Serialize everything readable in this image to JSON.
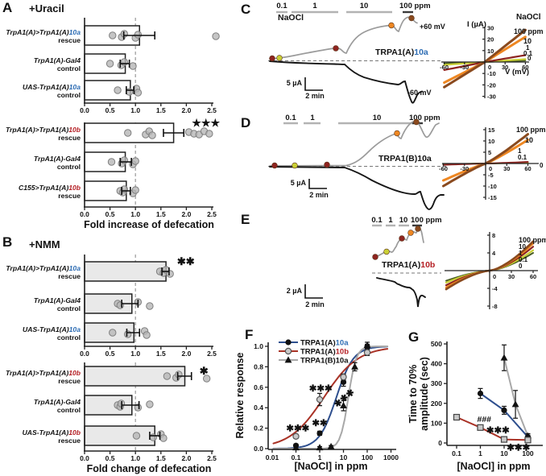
{
  "figure": {
    "panel_letters": [
      "A",
      "B",
      "C",
      "D",
      "E",
      "F",
      "G"
    ],
    "titles": {
      "uracil": "+Uracil",
      "nmm": "+NMM"
    }
  },
  "colors": {
    "blue": "#2e6db4",
    "red": "#b52025",
    "bar_open": "#ffffff",
    "bar_filled": "#e9e9e9",
    "dot_fill": "#b7b7b7",
    "dot_stroke": "#7f7f7f",
    "trace_gray": "#9b9b9b",
    "trace_black": "#161616",
    "c100": "#8a4a1e",
    "c10": "#ee8722",
    "c1": "#8e2420",
    "c01": "#c9cf35",
    "c0": "#4a5d23",
    "series_blue": "#2e4f8e",
    "series_red": "#a93226",
    "series_gray": "#a8a8a8"
  },
  "chart_data": [
    {
      "id": "a_top",
      "type": "bar",
      "orientation": "horizontal",
      "bar_style": "open",
      "xlim": [
        0,
        2.5
      ],
      "xticks": [
        "0.0",
        "0.5",
        "1.0",
        "1.5",
        "2.0",
        "2.5"
      ],
      "refline": 1.0,
      "xlabel": null,
      "rows": [
        {
          "label_pre": "TrpA1(A)>TrpA1(A)",
          "label_var": "10a",
          "var_color": "blue",
          "label_line2": "rescue",
          "value": 1.08,
          "err": [
            0.77,
            1.38
          ],
          "points": [
            0.55,
            0.73,
            0.78,
            1.0,
            1.05,
            2.58
          ],
          "sig": ""
        },
        {
          "label_pre": "TrpA1(A)-Gal4",
          "label_var": "",
          "var_color": null,
          "label_line2": "control",
          "value": 0.8,
          "err": [
            0.7,
            0.88
          ],
          "points": [
            0.5,
            0.72,
            0.78,
            0.95
          ],
          "sig": ""
        },
        {
          "label_pre": "UAS-TrpA1(A)",
          "label_var": "10a",
          "var_color": "blue",
          "label_line2": "control",
          "value": 0.9,
          "err": [
            0.82,
            0.97
          ],
          "points": [
            0.65,
            0.88,
            1.02,
            1.05
          ],
          "sig": ""
        }
      ]
    },
    {
      "id": "a_bottom",
      "type": "bar",
      "orientation": "horizontal",
      "bar_style": "open",
      "xlim": [
        0,
        2.5
      ],
      "xticks": [
        "0.0",
        "0.5",
        "1.0",
        "1.5",
        "2.0",
        "2.5"
      ],
      "refline": 1.0,
      "xlabel": "Fold increase of defecation",
      "rows": [
        {
          "label_pre": "TrpA1(A)>TrpA1(A)",
          "label_var": "10b",
          "var_color": "red",
          "label_line2": "rescue",
          "value": 1.75,
          "err": [
            1.55,
            1.95
          ],
          "points": [
            0.85,
            1.2,
            1.27,
            1.33,
            2.05,
            2.15,
            2.25,
            2.35,
            2.45
          ],
          "sig": "★★★"
        },
        {
          "label_pre": "TrpA1(A)-Gal4",
          "label_var": "",
          "var_color": null,
          "label_line2": "control",
          "value": 0.8,
          "err": [
            0.7,
            0.92
          ],
          "points": [
            0.53,
            0.73,
            0.78,
            0.95,
            1.0
          ],
          "sig": ""
        },
        {
          "label_pre": "C155>TrpA1(A)",
          "label_var": "10b",
          "var_color": "red",
          "label_line2": "rescue",
          "value": 0.82,
          "err": [
            0.73,
            0.9
          ],
          "points": [
            0.7,
            0.75,
            0.78,
            0.95,
            1.0
          ],
          "sig": ""
        }
      ]
    },
    {
      "id": "b_top",
      "type": "bar",
      "orientation": "horizontal",
      "bar_style": "filled",
      "xlim": [
        0,
        2.5
      ],
      "xticks": [
        "0.0",
        "0.5",
        "1.0",
        "1.5",
        "2.0",
        "2.5"
      ],
      "refline": 1.0,
      "xlabel": null,
      "rows": [
        {
          "label_pre": "TrpA1(A)>TrpA1(A)",
          "label_var": "10a",
          "var_color": "blue",
          "label_line2": "rescue",
          "value": 1.6,
          "err": [
            1.52,
            1.66
          ],
          "points": [
            1.48,
            1.55,
            1.6,
            1.68
          ],
          "sig": "✱✱"
        },
        {
          "label_pre": "TrpA1(A)-Gal4",
          "label_var": "",
          "var_color": null,
          "label_line2": "control",
          "value": 0.93,
          "err": [
            0.73,
            1.05
          ],
          "points": [
            0.65,
            0.7,
            1.05,
            1.28
          ],
          "sig": ""
        },
        {
          "label_pre": "UAS-TrpA1(A)",
          "label_var": "10a",
          "var_color": "blue",
          "label_line2": "control",
          "value": 0.97,
          "err": [
            0.83,
            1.08
          ],
          "points": [
            0.55,
            0.85,
            1.18,
            1.22
          ],
          "sig": ""
        }
      ]
    },
    {
      "id": "b_bottom",
      "type": "bar",
      "orientation": "horizontal",
      "bar_style": "filled",
      "xlim": [
        0,
        2.5
      ],
      "xticks": [
        "0.0",
        "0.5",
        "1.0",
        "1.5",
        "2.0",
        "2.5"
      ],
      "refline": 1.0,
      "xlabel": "Fold change of defecation",
      "rows": [
        {
          "label_pre": "TrpA1(A)>TrpA1(A)",
          "label_var": "10b",
          "var_color": "red",
          "label_line2": "rescue",
          "value": 1.97,
          "err": [
            1.83,
            2.1
          ],
          "points": [
            1.62,
            1.8,
            1.85,
            2.4
          ],
          "sig": "✱"
        },
        {
          "label_pre": "TrpA1(A)-Gal4",
          "label_var": "",
          "var_color": null,
          "label_line2": "control",
          "value": 0.93,
          "err": [
            0.73,
            1.07
          ],
          "points": [
            0.65,
            0.7,
            0.72,
            1.05,
            1.28
          ],
          "sig": ""
        },
        {
          "label_pre": "UAS-TrpA1(A)",
          "label_var": "10b",
          "var_color": "red",
          "label_line2": "rescue",
          "value": 1.38,
          "err": [
            1.28,
            1.48
          ],
          "points": [
            1.02,
            1.35,
            1.5,
            1.55
          ],
          "sig": ""
        }
      ]
    },
    {
      "id": "c_trace",
      "type": "trace",
      "reagent": "NaOCl",
      "conc_labels": [
        "0.1",
        "1",
        "10",
        "100 ppm"
      ],
      "cell_pre": "TRPA1(A)",
      "cell_var": "10a",
      "var_color": "blue",
      "v_plus": "+60 mV",
      "v_minus": "-60 mV",
      "scale_i": "5 µA",
      "scale_t": "2 min",
      "iv": {
        "ylabel": "I (µA)",
        "xlabel": "V (mV)",
        "legend_title": "NaOCl",
        "ylim": 30,
        "yticks": [
          30,
          20,
          10,
          -10,
          -20,
          -30
        ],
        "xticks": [
          -60,
          -30,
          0,
          30,
          60
        ],
        "series": [
          {
            "label": "100 ppm",
            "color": "c100",
            "i_neg": -22,
            "i_pos": 28
          },
          {
            "label": "10",
            "color": "c10",
            "i_neg": -18,
            "i_pos": 22
          },
          {
            "label": "1",
            "color": "c1",
            "i_neg": -7,
            "i_pos": 6
          },
          {
            "label": "0.1",
            "color": "c01",
            "i_neg": -2.5,
            "i_pos": 2.5
          },
          {
            "label": "0",
            "color": "c0",
            "i_neg": -1.2,
            "i_pos": 1.2
          }
        ]
      }
    },
    {
      "id": "d_trace",
      "type": "trace",
      "reagent": null,
      "conc_labels": [
        "0.1",
        "1",
        "10",
        "100 ppm"
      ],
      "cell_pre": "TRPA1(B)",
      "cell_var": "10a",
      "var_color": null,
      "v_plus": null,
      "v_minus": null,
      "scale_i": "5 µA",
      "scale_t": "2 min",
      "iv": {
        "ylabel": null,
        "xlabel": null,
        "legend_title": null,
        "ylim": 15,
        "yticks": [
          15,
          10,
          5,
          -5,
          -10,
          -15
        ],
        "xticks": [
          -60,
          -30,
          0,
          30,
          60
        ],
        "series": [
          {
            "label": "100 ppm",
            "color": "c100",
            "i_neg": -10,
            "i_pos": 13
          },
          {
            "label": "10",
            "color": "c10",
            "i_neg": -7.5,
            "i_pos": 10.5
          },
          {
            "label": "1",
            "color": "c1",
            "i_neg": -0.6,
            "i_pos": 0.7
          },
          {
            "label": "0.1",
            "color": "c01",
            "i_neg": -0.4,
            "i_pos": 0.4
          },
          {
            "label": "0",
            "color": "c0",
            "i_neg": -0.3,
            "i_pos": 0.3
          }
        ]
      }
    },
    {
      "id": "e_trace",
      "type": "trace",
      "reagent": null,
      "conc_labels": [
        "0.1",
        "1",
        "10",
        "100 ppm"
      ],
      "cell_pre": "TRPA1(A)",
      "cell_var": "10b",
      "var_color": "red",
      "v_plus": null,
      "v_minus": null,
      "scale_i": "2 µA",
      "scale_t": "2 min",
      "iv": {
        "ylabel": null,
        "xlabel": null,
        "legend_title": null,
        "ylim": 8,
        "yticks": [
          8,
          4,
          -4,
          -8
        ],
        "xticks": [
          0,
          30,
          60
        ],
        "series": [
          {
            "label": "100 ppm",
            "color": "c100",
            "i_neg": -4.2,
            "i_pos": 6.6
          },
          {
            "label": "10",
            "color": "c10",
            "i_neg": -3.8,
            "i_pos": 6.1
          },
          {
            "label": "1",
            "color": "c1",
            "i_neg": -3.3,
            "i_pos": 5.4
          },
          {
            "label": "0.1",
            "color": "c01",
            "i_neg": -2.7,
            "i_pos": 4.6
          },
          {
            "label": "0",
            "color": "c0",
            "i_neg": -2.3,
            "i_pos": 4.0
          }
        ]
      }
    },
    {
      "id": "f_dose_response",
      "type": "scatter",
      "title": null,
      "xlabel": "[NaOCl] in ppm",
      "ylabel": "Relative response",
      "xscale": "log",
      "xlim": [
        0.01,
        1000
      ],
      "ylim": [
        0,
        1.05
      ],
      "xticks": [
        "0.01",
        "0.1",
        "1",
        "10",
        "100",
        "1000"
      ],
      "yticks": [
        "0.0",
        "0.2",
        "0.4",
        "0.6",
        "0.8",
        "1.0"
      ],
      "legend_position": "top-left",
      "series": [
        {
          "name_pre": "TRPA1(A)",
          "name_var": "10a",
          "var_color": "blue",
          "marker": "circle_filled",
          "color": "series_blue",
          "ec50": 5,
          "hill": 1.2,
          "points": [
            {
              "x": 0.1,
              "y": 0.03,
              "e": 0.01
            },
            {
              "x": 1,
              "y": 0.15,
              "e": 0.02
            },
            {
              "x": 10,
              "y": 0.65,
              "e": 0.04
            },
            {
              "x": 100,
              "y": 1.0,
              "e": 0.02
            }
          ]
        },
        {
          "name_pre": "TRPA1(A)",
          "name_var": "10b",
          "var_color": "red",
          "marker": "circle_open",
          "color": "series_red",
          "ec50": 1.5,
          "hill": 0.6,
          "points": [
            {
              "x": 0.1,
              "y": 0.12,
              "e": 0.02
            },
            {
              "x": 1,
              "y": 0.48,
              "e": 0.06
            },
            {
              "x": 10,
              "y": 0.7,
              "e": 0.03
            },
            {
              "x": 100,
              "y": 0.94,
              "e": 0.03
            }
          ]
        },
        {
          "name_pre": "TRPA1(B)",
          "name_var": "10a",
          "var_color": null,
          "marker": "triangle",
          "color": "series_gray",
          "ec50": 16,
          "hill": 2.6,
          "points": [
            {
              "x": 0.1,
              "y": 0.01,
              "e": 0.01
            },
            {
              "x": 1,
              "y": 0.01,
              "e": 0.01
            },
            {
              "x": 3,
              "y": 0.02,
              "e": 0.01
            },
            {
              "x": 10,
              "y": 0.42,
              "e": 0.05
            },
            {
              "x": 30,
              "y": 0.8,
              "e": 0.04
            },
            {
              "x": 100,
              "y": 1.01,
              "e": 0.03
            }
          ]
        }
      ],
      "annotations": [
        {
          "text": "✱✱✱",
          "x": 0.12,
          "y": 0.17,
          "rotate": 0
        },
        {
          "text": "✱✱",
          "x": 1.0,
          "y": 0.22,
          "rotate": 0
        },
        {
          "text": "✱✱✱",
          "x": 1.1,
          "y": 0.56,
          "rotate": 0
        },
        {
          "text": "✱✱✱",
          "x": 13,
          "y": 0.47,
          "rotate": -40
        }
      ]
    },
    {
      "id": "g_kinetics",
      "type": "scatter",
      "title": null,
      "xlabel": "[NaOCl] in ppm",
      "ylabel": [
        "Time to 70%",
        "amplitude (sec)"
      ],
      "xscale": "log",
      "xlim": [
        0.04,
        300
      ],
      "ylim": [
        0,
        500
      ],
      "xticks": [
        "0.1",
        "1",
        "10",
        "100"
      ],
      "yticks": [
        "0",
        "100",
        "200",
        "300",
        "400",
        "500"
      ],
      "legend_position": "none",
      "series": [
        {
          "name_pre": "TRPA1(B)",
          "name_var": "10a",
          "var_color": null,
          "marker": "triangle",
          "color": "series_gray",
          "points": [
            {
              "x": 10,
              "y": 430,
              "e": 65
            },
            {
              "x": 30,
              "y": 195,
              "e": 70
            },
            {
              "x": 100,
              "y": 35,
              "e": 12
            }
          ]
        },
        {
          "name_pre": "TRPA1(A)",
          "name_var": "10a",
          "var_color": "blue",
          "marker": "circle_filled",
          "color": "series_blue",
          "points": [
            {
              "x": 1,
              "y": 250,
              "e": 25
            },
            {
              "x": 10,
              "y": 165,
              "e": 20
            },
            {
              "x": 100,
              "y": 30,
              "e": 10
            }
          ]
        },
        {
          "name_pre": "TRPA1(A)",
          "name_var": "10b",
          "var_color": "red",
          "marker": "square_open",
          "color": "series_red",
          "points": [
            {
              "x": 0.1,
              "y": 130,
              "e": 8
            },
            {
              "x": 1,
              "y": 78,
              "e": 10
            },
            {
              "x": 10,
              "y": 18,
              "e": 6
            },
            {
              "x": 100,
              "y": 15,
              "e": 6
            }
          ]
        }
      ],
      "annotations": [
        {
          "text": "###",
          "x": 1.45,
          "y": 105,
          "rotate": 0
        },
        {
          "text": "✱✱✱",
          "x": 5.5,
          "y": 48,
          "rotate": 0
        },
        {
          "text": "✱✱✱",
          "x": 40,
          "y": -38,
          "rotate": 0
        }
      ]
    }
  ]
}
